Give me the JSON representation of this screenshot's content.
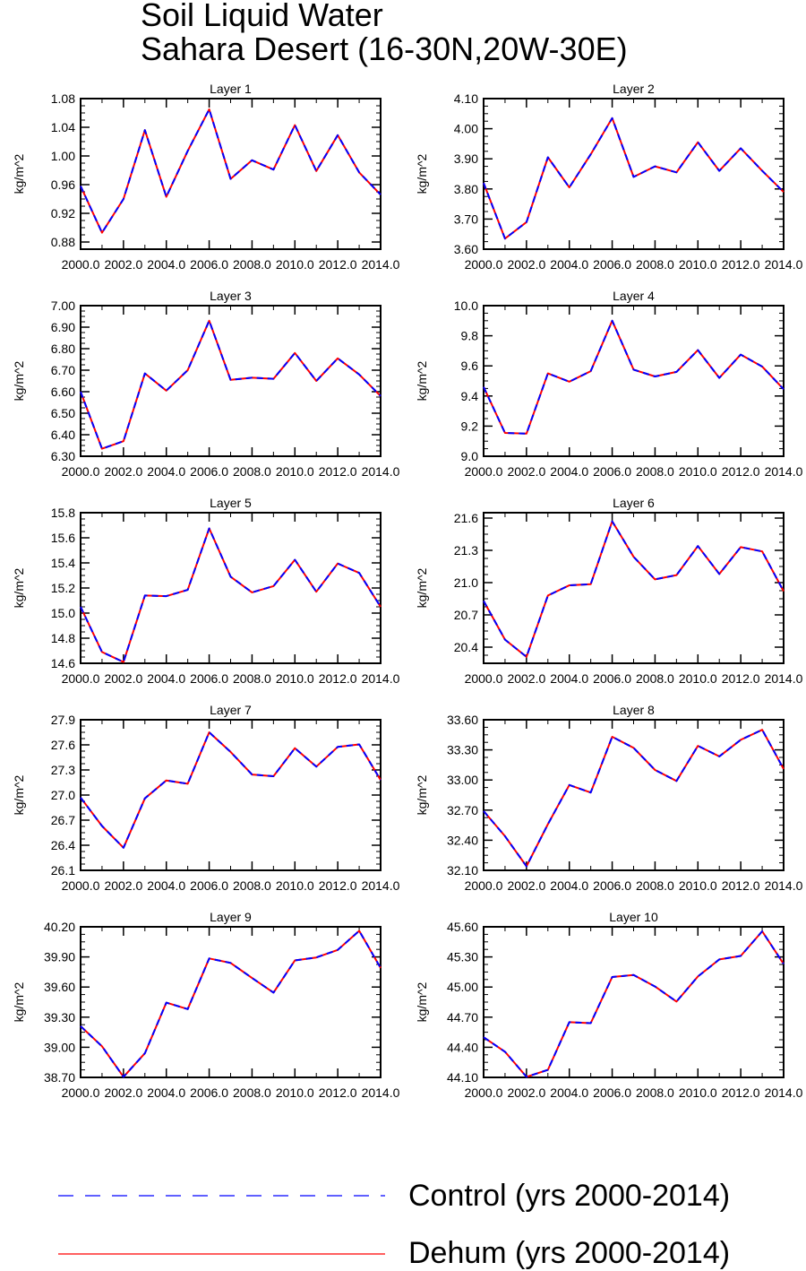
{
  "figure": {
    "title_line1": "Soil Liquid Water",
    "title_line2": "Sahara Desert (16-30N,20W-30E)"
  },
  "colors": {
    "control": "#0000ff",
    "dehum": "#ff0000",
    "axis": "#000000"
  },
  "legend": {
    "control_label": "Control (yrs 2000-2014)",
    "dehum_label": "Dehum (yrs 2000-2014)"
  },
  "chart_data": [
    {
      "type": "line",
      "title": "Layer 1",
      "ylabel": "kg/m^2",
      "xlim": [
        2000,
        2014
      ],
      "ylim": [
        0.87,
        1.08
      ],
      "x_ticks": [
        "2000.0",
        "2002.0",
        "2004.0",
        "2006.0",
        "2008.0",
        "2010.0",
        "2012.0",
        "2014.0"
      ],
      "y_ticks": [
        "0.88",
        "0.92",
        "0.96",
        "1.00",
        "1.04",
        "1.08"
      ],
      "x": [
        2000,
        2001,
        2002,
        2003,
        2004,
        2005,
        2006,
        2007,
        2008,
        2009,
        2010,
        2011,
        2012,
        2013,
        2014
      ],
      "series": [
        {
          "name": "Control (yrs 2000-2014)",
          "values": [
            0.958,
            0.893,
            0.94,
            1.036,
            0.943,
            1.007,
            1.065,
            0.968,
            0.994,
            0.981,
            1.043,
            0.979,
            1.029,
            0.977,
            0.946
          ]
        },
        {
          "name": "Dehum (yrs 2000-2014)",
          "values": [
            0.958,
            0.893,
            0.94,
            1.036,
            0.943,
            1.007,
            1.065,
            0.968,
            0.994,
            0.981,
            1.043,
            0.979,
            1.029,
            0.977,
            0.946
          ]
        }
      ]
    },
    {
      "type": "line",
      "title": "Layer 2",
      "ylabel": "kg/m^2",
      "xlim": [
        2000,
        2014
      ],
      "ylim": [
        3.6,
        4.1
      ],
      "x_ticks": [
        "2000.0",
        "2002.0",
        "2004.0",
        "2006.0",
        "2008.0",
        "2010.0",
        "2012.0",
        "2014.0"
      ],
      "y_ticks": [
        "3.60",
        "3.70",
        "3.80",
        "3.90",
        "4.00",
        "4.10"
      ],
      "x": [
        2000,
        2001,
        2002,
        2003,
        2004,
        2005,
        2006,
        2007,
        2008,
        2009,
        2010,
        2011,
        2012,
        2013,
        2014
      ],
      "series": [
        {
          "name": "Control (yrs 2000-2014)",
          "values": [
            3.82,
            3.635,
            3.69,
            3.905,
            3.805,
            3.915,
            4.035,
            3.84,
            3.875,
            3.855,
            3.955,
            3.86,
            3.935,
            3.86,
            3.79
          ]
        },
        {
          "name": "Dehum (yrs 2000-2014)",
          "values": [
            3.82,
            3.635,
            3.69,
            3.905,
            3.805,
            3.915,
            4.035,
            3.84,
            3.875,
            3.855,
            3.955,
            3.86,
            3.935,
            3.86,
            3.79
          ]
        }
      ]
    },
    {
      "type": "line",
      "title": "Layer 3",
      "ylabel": "kg/m^2",
      "xlim": [
        2000,
        2014
      ],
      "ylim": [
        6.3,
        7.0
      ],
      "x_ticks": [
        "2000.0",
        "2002.0",
        "2004.0",
        "2006.0",
        "2008.0",
        "2010.0",
        "2012.0",
        "2014.0"
      ],
      "y_ticks": [
        "6.30",
        "6.40",
        "6.50",
        "6.60",
        "6.70",
        "6.80",
        "6.90",
        "7.00"
      ],
      "x": [
        2000,
        2001,
        2002,
        2003,
        2004,
        2005,
        2006,
        2007,
        2008,
        2009,
        2010,
        2011,
        2012,
        2013,
        2014
      ],
      "series": [
        {
          "name": "Control (yrs 2000-2014)",
          "values": [
            6.6,
            6.335,
            6.37,
            6.685,
            6.605,
            6.7,
            6.93,
            6.655,
            6.665,
            6.66,
            6.78,
            6.65,
            6.755,
            6.68,
            6.58
          ]
        },
        {
          "name": "Dehum (yrs 2000-2014)",
          "values": [
            6.6,
            6.335,
            6.37,
            6.685,
            6.605,
            6.7,
            6.93,
            6.655,
            6.665,
            6.66,
            6.78,
            6.65,
            6.755,
            6.68,
            6.58
          ]
        }
      ]
    },
    {
      "type": "line",
      "title": "Layer 4",
      "ylabel": "kg/m^2",
      "xlim": [
        2000,
        2014
      ],
      "ylim": [
        9.0,
        10.0
      ],
      "x_ticks": [
        "2000.0",
        "2002.0",
        "2004.0",
        "2006.0",
        "2008.0",
        "2010.0",
        "2012.0",
        "2014.0"
      ],
      "y_ticks": [
        "9.0",
        "9.2",
        "9.4",
        "9.6",
        "9.8",
        "10.0"
      ],
      "x": [
        2000,
        2001,
        2002,
        2003,
        2004,
        2005,
        2006,
        2007,
        2008,
        2009,
        2010,
        2011,
        2012,
        2013,
        2014
      ],
      "series": [
        {
          "name": "Control (yrs 2000-2014)",
          "values": [
            9.46,
            9.155,
            9.15,
            9.55,
            9.495,
            9.565,
            9.9,
            9.575,
            9.53,
            9.56,
            9.705,
            9.52,
            9.675,
            9.595,
            9.445
          ]
        },
        {
          "name": "Dehum (yrs 2000-2014)",
          "values": [
            9.46,
            9.155,
            9.15,
            9.55,
            9.495,
            9.565,
            9.9,
            9.575,
            9.53,
            9.56,
            9.705,
            9.52,
            9.675,
            9.595,
            9.445
          ]
        }
      ]
    },
    {
      "type": "line",
      "title": "Layer 5",
      "ylabel": "kg/m^2",
      "xlim": [
        2000,
        2014
      ],
      "ylim": [
        14.6,
        15.8
      ],
      "x_ticks": [
        "2000.0",
        "2002.0",
        "2004.0",
        "2006.0",
        "2008.0",
        "2010.0",
        "2012.0",
        "2014.0"
      ],
      "y_ticks": [
        "14.6",
        "14.8",
        "15.0",
        "15.2",
        "15.4",
        "15.6",
        "15.8"
      ],
      "x": [
        2000,
        2001,
        2002,
        2003,
        2004,
        2005,
        2006,
        2007,
        2008,
        2009,
        2010,
        2011,
        2012,
        2013,
        2014
      ],
      "series": [
        {
          "name": "Control (yrs 2000-2014)",
          "values": [
            15.05,
            14.69,
            14.61,
            15.14,
            15.135,
            15.185,
            15.675,
            15.29,
            15.165,
            15.215,
            15.425,
            15.17,
            15.395,
            15.32,
            15.05
          ]
        },
        {
          "name": "Dehum (yrs 2000-2014)",
          "values": [
            15.05,
            14.69,
            14.61,
            15.14,
            15.135,
            15.185,
            15.675,
            15.29,
            15.165,
            15.215,
            15.425,
            15.17,
            15.395,
            15.32,
            15.05
          ]
        }
      ]
    },
    {
      "type": "line",
      "title": "Layer 6",
      "ylabel": "kg/m^2",
      "xlim": [
        2000,
        2014
      ],
      "ylim": [
        20.25,
        21.65
      ],
      "x_ticks": [
        "2000.0",
        "2002.0",
        "2004.0",
        "2006.0",
        "2008.0",
        "2010.0",
        "2012.0",
        "2014.0"
      ],
      "y_ticks": [
        "20.4",
        "20.7",
        "21.0",
        "21.3",
        "21.6"
      ],
      "x": [
        2000,
        2001,
        2002,
        2003,
        2004,
        2005,
        2006,
        2007,
        2008,
        2009,
        2010,
        2011,
        2012,
        2013,
        2014
      ],
      "series": [
        {
          "name": "Control (yrs 2000-2014)",
          "values": [
            20.83,
            20.47,
            20.31,
            20.88,
            20.975,
            20.985,
            21.57,
            21.24,
            21.03,
            21.07,
            21.34,
            21.08,
            21.33,
            21.29,
            20.92
          ]
        },
        {
          "name": "Dehum (yrs 2000-2014)",
          "values": [
            20.83,
            20.47,
            20.31,
            20.88,
            20.975,
            20.985,
            21.57,
            21.24,
            21.03,
            21.07,
            21.34,
            21.08,
            21.33,
            21.29,
            20.92
          ]
        }
      ]
    },
    {
      "type": "line",
      "title": "Layer 7",
      "ylabel": "kg/m^2",
      "xlim": [
        2000,
        2014
      ],
      "ylim": [
        26.1,
        27.9
      ],
      "x_ticks": [
        "2000.0",
        "2002.0",
        "2004.0",
        "2006.0",
        "2008.0",
        "2010.0",
        "2012.0",
        "2014.0"
      ],
      "y_ticks": [
        "26.1",
        "26.4",
        "26.7",
        "27.0",
        "27.3",
        "27.6",
        "27.9"
      ],
      "x": [
        2000,
        2001,
        2002,
        2003,
        2004,
        2005,
        2006,
        2007,
        2008,
        2009,
        2010,
        2011,
        2012,
        2013,
        2014
      ],
      "series": [
        {
          "name": "Control (yrs 2000-2014)",
          "values": [
            26.97,
            26.63,
            26.37,
            26.96,
            27.175,
            27.135,
            27.75,
            27.515,
            27.245,
            27.225,
            27.56,
            27.34,
            27.575,
            27.605,
            27.18
          ]
        },
        {
          "name": "Dehum (yrs 2000-2014)",
          "values": [
            26.97,
            26.63,
            26.37,
            26.96,
            27.175,
            27.135,
            27.75,
            27.515,
            27.245,
            27.225,
            27.56,
            27.34,
            27.575,
            27.605,
            27.18
          ]
        }
      ]
    },
    {
      "type": "line",
      "title": "Layer 8",
      "ylabel": "kg/m^2",
      "xlim": [
        2000,
        2014
      ],
      "ylim": [
        32.1,
        33.6
      ],
      "x_ticks": [
        "2000.0",
        "2002.0",
        "2004.0",
        "2006.0",
        "2008.0",
        "2010.0",
        "2012.0",
        "2014.0"
      ],
      "y_ticks": [
        "32.10",
        "32.40",
        "32.70",
        "33.00",
        "33.30",
        "33.60"
      ],
      "x": [
        2000,
        2001,
        2002,
        2003,
        2004,
        2005,
        2006,
        2007,
        2008,
        2009,
        2010,
        2011,
        2012,
        2013,
        2014
      ],
      "series": [
        {
          "name": "Control (yrs 2000-2014)",
          "values": [
            32.69,
            32.44,
            32.14,
            32.56,
            32.95,
            32.875,
            33.43,
            33.32,
            33.1,
            32.99,
            33.34,
            33.235,
            33.4,
            33.5,
            33.11
          ]
        },
        {
          "name": "Dehum (yrs 2000-2014)",
          "values": [
            32.69,
            32.44,
            32.14,
            32.56,
            32.95,
            32.875,
            33.43,
            33.32,
            33.1,
            32.99,
            33.34,
            33.235,
            33.4,
            33.5,
            33.11
          ]
        }
      ]
    },
    {
      "type": "line",
      "title": "Layer 9",
      "ylabel": "kg/m^2",
      "xlim": [
        2000,
        2014
      ],
      "ylim": [
        38.7,
        40.2
      ],
      "x_ticks": [
        "2000.0",
        "2002.0",
        "2004.0",
        "2006.0",
        "2008.0",
        "2010.0",
        "2012.0",
        "2014.0"
      ],
      "y_ticks": [
        "38.70",
        "39.00",
        "39.30",
        "39.60",
        "39.90",
        "40.20"
      ],
      "x": [
        2000,
        2001,
        2002,
        2003,
        2004,
        2005,
        2006,
        2007,
        2008,
        2009,
        2010,
        2011,
        2012,
        2013,
        2014
      ],
      "series": [
        {
          "name": "Control (yrs 2000-2014)",
          "values": [
            39.21,
            39.01,
            38.705,
            38.94,
            39.445,
            39.38,
            39.885,
            39.84,
            39.69,
            39.545,
            39.865,
            39.895,
            39.97,
            40.16,
            39.79
          ]
        },
        {
          "name": "Dehum (yrs 2000-2014)",
          "values": [
            39.21,
            39.01,
            38.705,
            38.94,
            39.445,
            39.38,
            39.885,
            39.84,
            39.69,
            39.545,
            39.865,
            39.895,
            39.97,
            40.16,
            39.79
          ]
        }
      ]
    },
    {
      "type": "line",
      "title": "Layer 10",
      "ylabel": "kg/m^2",
      "xlim": [
        2000,
        2014
      ],
      "ylim": [
        44.1,
        45.6
      ],
      "x_ticks": [
        "2000.0",
        "2002.0",
        "2004.0",
        "2006.0",
        "2008.0",
        "2010.0",
        "2012.0",
        "2014.0"
      ],
      "y_ticks": [
        "44.10",
        "44.40",
        "44.70",
        "45.00",
        "45.30",
        "45.60"
      ],
      "x": [
        2000,
        2001,
        2002,
        2003,
        2004,
        2005,
        2006,
        2007,
        2008,
        2009,
        2010,
        2011,
        2012,
        2013,
        2014
      ],
      "series": [
        {
          "name": "Control (yrs 2000-2014)",
          "values": [
            44.5,
            44.355,
            44.105,
            44.175,
            44.65,
            44.64,
            45.1,
            45.12,
            45.005,
            44.855,
            45.105,
            45.275,
            45.31,
            45.555,
            45.23
          ]
        },
        {
          "name": "Dehum (yrs 2000-2014)",
          "values": [
            44.5,
            44.355,
            44.105,
            44.175,
            44.65,
            44.64,
            45.1,
            45.12,
            45.005,
            44.855,
            45.105,
            45.275,
            45.31,
            45.555,
            45.23
          ]
        }
      ]
    }
  ]
}
